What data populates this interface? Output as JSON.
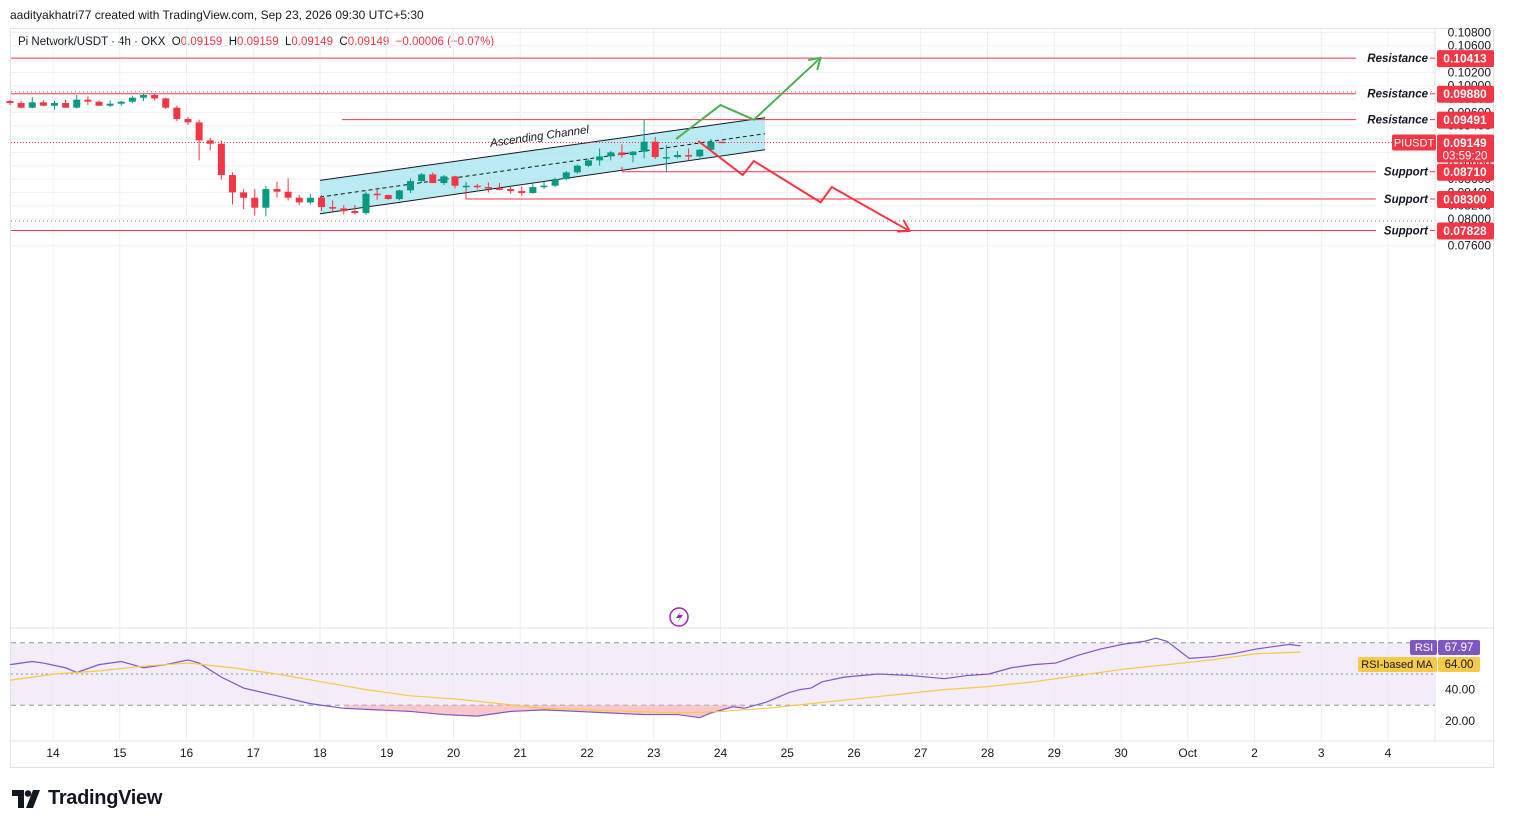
{
  "header": {
    "credit": "aadityakhatri77 created with TradingView.com, Sep 23, 2026 09:30 UTC+5:30"
  },
  "legend": {
    "symbol": "Pi Network/USDT · 4h · OKX",
    "o_label": "O",
    "o": "0.09159",
    "h_label": "H",
    "h": "0.09159",
    "l_label": "L",
    "l": "0.09149",
    "c_label": "C",
    "c": "0.09149",
    "change": "−0.00006 (−0.07%)"
  },
  "brand": {
    "name": "TradingView",
    "logo_icon": "tradingview-logo-icon"
  },
  "colors": {
    "up": "#089981",
    "down": "#f23645",
    "level": "#f23645",
    "channel_fill": "#a4e4ee",
    "bull_path": "#4caf50",
    "bear_path": "#f23645",
    "rsi": "#7e57c2",
    "rsi_ma": "#f7c948",
    "rsi_band": "#ede7f6"
  },
  "chart_data": [
    {
      "type": "candlestick",
      "title": "Pi Network/USDT · 4h · OKX",
      "x_unit": "date (Sep 2026, 4h candles, first candle Sep 13 16:00)",
      "y_axis_ticks": [
        "0.10800",
        "0.10600",
        "0.10200",
        "0.10000",
        "0.09800",
        "0.09600",
        "0.09400",
        "0.09200",
        "0.09000",
        "0.08800",
        "0.08600",
        "0.08400",
        "0.08200",
        "0.08000",
        "0.07600"
      ],
      "x_axis_ticks": [
        "14",
        "15",
        "16",
        "17",
        "18",
        "19",
        "20",
        "21",
        "22",
        "23",
        "24",
        "25",
        "26",
        "27",
        "28",
        "29",
        "30",
        "Oct",
        "2",
        "3",
        "4"
      ],
      "ylim": [
        0.0748,
        0.1098
      ],
      "candles": [
        [
          0.0977,
          0.0979,
          0.0971,
          0.0974
        ],
        [
          0.0974,
          0.0977,
          0.0966,
          0.0967
        ],
        [
          0.0967,
          0.0983,
          0.0966,
          0.0975
        ],
        [
          0.0975,
          0.0978,
          0.0969,
          0.097
        ],
        [
          0.097,
          0.0977,
          0.0964,
          0.0974
        ],
        [
          0.0974,
          0.0979,
          0.0967,
          0.0967
        ],
        [
          0.0967,
          0.0986,
          0.0966,
          0.0979
        ],
        [
          0.0979,
          0.0984,
          0.0971,
          0.0976
        ],
        [
          0.0976,
          0.0978,
          0.097,
          0.097
        ],
        [
          0.097,
          0.0978,
          0.0968,
          0.0973
        ],
        [
          0.0973,
          0.0977,
          0.097,
          0.0976
        ],
        [
          0.0976,
          0.0985,
          0.0974,
          0.0982
        ],
        [
          0.0982,
          0.0988,
          0.0977,
          0.0986
        ],
        [
          0.0986,
          0.0988,
          0.0978,
          0.0981
        ],
        [
          0.0981,
          0.0982,
          0.0965,
          0.0967
        ],
        [
          0.0967,
          0.097,
          0.0947,
          0.095
        ],
        [
          0.095,
          0.0953,
          0.0941,
          0.0945
        ],
        [
          0.0945,
          0.0949,
          0.0888,
          0.0918
        ],
        [
          0.0918,
          0.0922,
          0.0903,
          0.0913
        ],
        [
          0.0913,
          0.0918,
          0.0859,
          0.0866
        ],
        [
          0.0866,
          0.087,
          0.0822,
          0.084
        ],
        [
          0.084,
          0.0845,
          0.0815,
          0.0832
        ],
        [
          0.0832,
          0.0845,
          0.0805,
          0.0817
        ],
        [
          0.0817,
          0.085,
          0.0804,
          0.0845
        ],
        [
          0.0845,
          0.0856,
          0.0832,
          0.0841
        ],
        [
          0.0841,
          0.0861,
          0.0828,
          0.0832
        ],
        [
          0.0832,
          0.0836,
          0.0821,
          0.0825
        ],
        [
          0.0825,
          0.0838,
          0.0822,
          0.0832
        ],
        [
          0.0832,
          0.0836,
          0.0812,
          0.0818
        ],
        [
          0.0818,
          0.0828,
          0.0812,
          0.0816
        ],
        [
          0.0816,
          0.0821,
          0.0807,
          0.0812
        ],
        [
          0.0812,
          0.0821,
          0.0807,
          0.0809
        ],
        [
          0.0809,
          0.0841,
          0.0806,
          0.0838
        ],
        [
          0.0838,
          0.0847,
          0.0829,
          0.0836
        ],
        [
          0.0836,
          0.0837,
          0.0829,
          0.083
        ],
        [
          0.083,
          0.0844,
          0.0828,
          0.0843
        ],
        [
          0.0843,
          0.0861,
          0.0839,
          0.0857
        ],
        [
          0.0857,
          0.0869,
          0.0854,
          0.0867
        ],
        [
          0.0867,
          0.087,
          0.0856,
          0.0854
        ],
        [
          0.0854,
          0.0866,
          0.0851,
          0.0864
        ],
        [
          0.0864,
          0.0865,
          0.0846,
          0.085
        ],
        [
          0.085,
          0.0856,
          0.0843,
          0.085
        ],
        [
          0.085,
          0.0853,
          0.0845,
          0.0848
        ],
        [
          0.0848,
          0.0855,
          0.084,
          0.0846
        ],
        [
          0.0846,
          0.0854,
          0.0843,
          0.0845
        ],
        [
          0.0845,
          0.0848,
          0.0838,
          0.0842
        ],
        [
          0.0842,
          0.0849,
          0.0835,
          0.0839
        ],
        [
          0.0839,
          0.0853,
          0.0838,
          0.0848
        ],
        [
          0.0848,
          0.0856,
          0.0845,
          0.085
        ],
        [
          0.085,
          0.0862,
          0.0848,
          0.086
        ],
        [
          0.086,
          0.0872,
          0.0858,
          0.087
        ],
        [
          0.087,
          0.0882,
          0.0868,
          0.088
        ],
        [
          0.088,
          0.089,
          0.0878,
          0.0888
        ],
        [
          0.0888,
          0.0906,
          0.088,
          0.0894
        ],
        [
          0.0894,
          0.0902,
          0.0888,
          0.09
        ],
        [
          0.09,
          0.0912,
          0.0892,
          0.0896
        ],
        [
          0.0896,
          0.0902,
          0.0885,
          0.0901
        ],
        [
          0.0901,
          0.0949,
          0.0891,
          0.0916
        ],
        [
          0.0916,
          0.0923,
          0.089,
          0.0893
        ],
        [
          0.0893,
          0.0911,
          0.0871,
          0.0893
        ],
        [
          0.0893,
          0.0902,
          0.0891,
          0.0896
        ],
        [
          0.0896,
          0.0906,
          0.0888,
          0.0894
        ],
        [
          0.0894,
          0.0905,
          0.0892,
          0.0904
        ],
        [
          0.0904,
          0.092,
          0.0902,
          0.0916
        ],
        [
          0.0916,
          0.0916,
          0.0915,
          0.0915
        ]
      ],
      "horizontal_levels": [
        {
          "label": "Resistance",
          "value": "0.10413",
          "price": 0.10413
        },
        {
          "label": "Resistance",
          "value": "0.09880",
          "price": 0.0988
        },
        {
          "label": "Resistance",
          "value": "0.09491",
          "price": 0.09491
        },
        {
          "label": "Support",
          "value": "0.08710",
          "price": 0.0871
        },
        {
          "label": "Support",
          "value": "0.08300",
          "price": 0.083
        },
        {
          "label": "Support",
          "value": "0.07828",
          "price": 0.07828
        }
      ],
      "last_price": {
        "symbol": "PIUSDT",
        "value": "0.09149",
        "countdown": "03:59:20",
        "price": 0.09149
      },
      "channel": {
        "label": "Ascending Channel",
        "upper": [
          [
            "Sep 18 00:00",
            0.0858
          ],
          [
            "Sep 24 16:00",
            0.0952
          ]
        ],
        "lower": [
          [
            "Sep 18 00:00",
            0.0808
          ],
          [
            "Sep 24 16:00",
            0.0904
          ]
        ]
      },
      "bull_path": [
        [
          "Sep 23 08:00",
          0.092
        ],
        [
          "Sep 24 00:00",
          0.0971
        ],
        [
          "Sep 24 12:00",
          0.0949
        ],
        [
          "Sep 25 12:00",
          0.1042
        ]
      ],
      "bear_path": [
        [
          "Sep 23 16:00",
          0.0917
        ],
        [
          "Sep 24 08:00",
          0.0866
        ],
        [
          "Sep 24 12:00",
          0.0887
        ],
        [
          "Sep 25 12:00",
          0.0825
        ],
        [
          "Sep 25 16:00",
          0.0848
        ],
        [
          "Sep 26 20:00",
          0.0782
        ]
      ]
    },
    {
      "type": "line",
      "title": "RSI",
      "y_axis_ticks": [
        "40.00",
        "20.00"
      ],
      "ylim": [
        10,
        90
      ],
      "series": [
        {
          "name": "RSI",
          "value": "67.97",
          "values": [
            [
              0,
              56
            ],
            [
              2,
              58
            ],
            [
              3,
              57
            ],
            [
              5,
              54
            ],
            [
              6,
              51
            ],
            [
              8,
              56
            ],
            [
              10,
              58
            ],
            [
              12,
              54
            ],
            [
              14,
              56
            ],
            [
              16,
              59
            ],
            [
              17,
              57
            ],
            [
              19,
              48
            ],
            [
              21,
              41
            ],
            [
              24,
              36
            ],
            [
              27,
              31
            ],
            [
              30,
              28
            ],
            [
              33,
              27
            ],
            [
              36,
              26
            ],
            [
              39,
              24
            ],
            [
              42,
              23
            ],
            [
              45,
              26
            ],
            [
              48,
              27
            ],
            [
              51,
              26
            ],
            [
              54,
              25
            ],
            [
              57,
              24
            ],
            [
              60,
              24
            ],
            [
              62,
              22
            ],
            [
              63,
              25
            ],
            [
              65,
              29
            ],
            [
              66,
              28
            ],
            [
              67,
              30
            ],
            [
              68,
              32
            ],
            [
              69,
              35
            ],
            [
              70,
              38
            ],
            [
              71,
              40
            ],
            [
              72,
              41
            ],
            [
              73,
              45
            ],
            [
              75,
              48
            ],
            [
              78,
              50
            ],
            [
              81,
              49
            ],
            [
              84,
              47
            ],
            [
              86,
              49
            ],
            [
              88,
              50
            ],
            [
              90,
              54
            ],
            [
              92,
              56
            ],
            [
              94,
              57
            ],
            [
              96,
              62
            ],
            [
              98,
              66
            ],
            [
              100,
              69
            ],
            [
              102,
              71
            ],
            [
              103,
              73
            ],
            [
              104,
              71
            ],
            [
              106,
              60
            ],
            [
              108,
              61
            ],
            [
              110,
              63
            ],
            [
              112,
              66
            ],
            [
              114,
              68
            ],
            [
              115,
              69
            ],
            [
              116,
              68
            ]
          ]
        },
        {
          "name": "RSI-based MA",
          "value": "64.00",
          "values": [
            [
              0,
              46
            ],
            [
              4,
              50
            ],
            [
              8,
              52
            ],
            [
              12,
              55
            ],
            [
              16,
              57
            ],
            [
              20,
              54
            ],
            [
              24,
              50
            ],
            [
              28,
              45
            ],
            [
              32,
              40
            ],
            [
              36,
              36
            ],
            [
              40,
              34
            ],
            [
              44,
              31
            ],
            [
              48,
              28
            ],
            [
              52,
              27
            ],
            [
              56,
              26
            ],
            [
              60,
              25
            ],
            [
              64,
              26
            ],
            [
              68,
              28
            ],
            [
              72,
              31
            ],
            [
              76,
              34
            ],
            [
              80,
              37
            ],
            [
              84,
              40
            ],
            [
              88,
              42
            ],
            [
              92,
              45
            ],
            [
              96,
              49
            ],
            [
              100,
              53
            ],
            [
              104,
              56
            ],
            [
              108,
              59
            ],
            [
              112,
              63
            ],
            [
              116,
              64
            ]
          ]
        }
      ],
      "bands": [
        30,
        50,
        70
      ]
    }
  ]
}
